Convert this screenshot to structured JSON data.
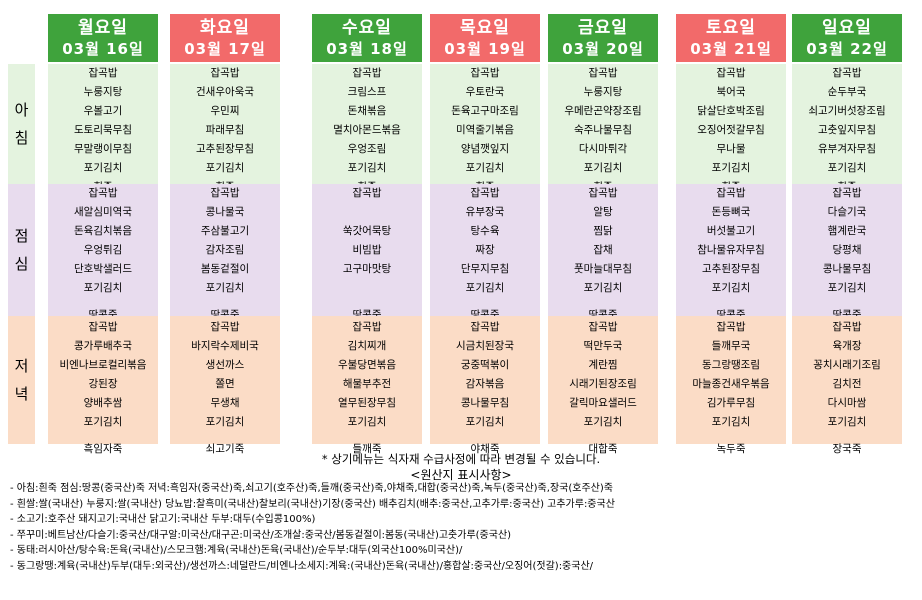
{
  "days": [
    {
      "name": "월요일",
      "date": "03월 16일",
      "color": "#3fa33c"
    },
    {
      "name": "화요일",
      "date": "03월 17일",
      "color": "#f26a6a"
    },
    {
      "name": "수요일",
      "date": "03월 18일",
      "color": "#3fa33c"
    },
    {
      "name": "목요일",
      "date": "03월 19일",
      "color": "#f26a6a"
    },
    {
      "name": "금요일",
      "date": "03월 20일",
      "color": "#3fa33c"
    },
    {
      "name": "토요일",
      "date": "03월 21일",
      "color": "#f26a6a"
    },
    {
      "name": "일요일",
      "date": "03월 22일",
      "color": "#3fa33c"
    }
  ],
  "meals": {
    "breakfast_label": [
      "아",
      "침"
    ],
    "lunch_label": [
      "점",
      "심"
    ],
    "dinner_label": [
      "저",
      "녁"
    ]
  },
  "breakfast": [
    [
      "잡곡밥",
      "누룽지탕",
      "우볼고기",
      "도토리묵무침",
      "무말랭이무침",
      "포기김치",
      "흰죽"
    ],
    [
      "잡곡밥",
      "건새우아욱국",
      "우민찌",
      "파래무침",
      "고추된장무침",
      "포기김치",
      "흰죽"
    ],
    [
      "잡곡밥",
      "크림스프",
      "돈채볶음",
      "멸치아몬드볶음",
      "우엉조림",
      "포기김치",
      "흰죽"
    ],
    [
      "잡곡밥",
      "우토란국",
      "돈육고구마조림",
      "미역줄기볶음",
      "양념깻잎지",
      "포기김치",
      "흰죽"
    ],
    [
      "잡곡밥",
      "누룽지탕",
      "우메란곤약장조림",
      "숙주나물무침",
      "다시마튀각",
      "포기김치",
      "흰죽"
    ],
    [
      "잡곡밥",
      "북어국",
      "닭살단호박조림",
      "오징어젓갈무침",
      "무나물",
      "포기김치",
      "흰죽"
    ],
    [
      "잡곡밥",
      "순두부국",
      "쇠고기버섯장조림",
      "고춧잎지무침",
      "유부겨자무침",
      "포기김치",
      "흰죽"
    ]
  ],
  "lunch": [
    [
      "잡곡밥",
      "새알심미역국",
      "돈육김치볶음",
      "우엉튀김",
      "단호박샐러드",
      "포기김치",
      "땅콩죽"
    ],
    [
      "잡곡밥",
      "콩나물국",
      "주삼불고기",
      "감자조림",
      "봄동겉절이",
      "포기김치",
      "땅콩죽"
    ],
    [
      "잡곡밥",
      "",
      "쑥갓어묵탕",
      "비빔밥",
      "고구마맛탕",
      "",
      "땅콩죽"
    ],
    [
      "잡곡밥",
      "유부장국",
      "탕수육",
      "짜장",
      "단무지무침",
      "포기김치",
      "땅콩죽"
    ],
    [
      "잡곡밥",
      "알탕",
      "찜닭",
      "잡채",
      "풋마늘대무침",
      "포기김치",
      "땅콩죽"
    ],
    [
      "잡곡밥",
      "돈등뼈국",
      "버섯불고기",
      "참나물유자무침",
      "고추된장무침",
      "포기김치",
      "땅콩죽"
    ],
    [
      "잡곡밥",
      "다슬기국",
      "햄계란국",
      "당평채",
      "콩나물무침",
      "포기김치",
      "땅콩죽"
    ]
  ],
  "dinner": [
    [
      "잡곡밥",
      "콩가루배추국",
      "비엔나브로컬리볶음",
      "강된장",
      "양배추쌈",
      "포기김치",
      "흑임자죽"
    ],
    [
      "잡곡밥",
      "바지락수제비국",
      "생선까스",
      "쫄면",
      "무생채",
      "포기김치",
      "쇠고기죽"
    ],
    [
      "잡곡밥",
      "김치찌개",
      "우불당면볶음",
      "해물부추전",
      "열무된장무침",
      "포기김치",
      "들깨죽"
    ],
    [
      "잡곡밥",
      "시금치된장국",
      "궁중떡볶이",
      "감자볶음",
      "콩나물무침",
      "포기김치",
      "야채죽"
    ],
    [
      "잡곡밥",
      "떡만두국",
      "계란찜",
      "시래기된장조림",
      "갈릭마요샐러드",
      "포기김치",
      "대합죽"
    ],
    [
      "잡곡밥",
      "들깨무국",
      "동그랑땡조림",
      "마늘종건새우볶음",
      "김가루무침",
      "포기김치",
      "녹두죽"
    ],
    [
      "잡곡밥",
      "육개장",
      "꽁치시래기조림",
      "김치전",
      "다시마쌈",
      "포기김치",
      "장국죽"
    ]
  ],
  "notice": "* 상기메뉴는 식자재 수급사정에 따라 변경될 수 있습니다.",
  "origin_title": "<원산지 표시사항>",
  "origin_notes": [
    "- 아침:흰죽  점심:땅콩(중국산)죽  저녁:흑임자(중국산)죽,쇠고기(호주산)죽,들깨(중국산)죽,야채죽,대합(중국산)죽,녹두(중국산)죽,장국(호주산)죽",
    "- 흰쌀:쌀(국내산)  누룽지:쌀(국내산)  당뇨밥:찰흑미(국내산)찰보리(국내산)기장(중국산)  배추김치(배추:중국산,고추가루:중국산)  고추가루:중국산",
    "- 소고기:호주산  돼지고기:국내산  닭고기:국내산  두부:대두(수입콩100%)",
    "- 쭈꾸미:베트남산/다슬기:중국산/대구알:미국산/대구곤:미국산/조개살:중국산/봄동겉절이:봄동(국내산)고춧가루(중국산)",
    "- 동태:러시아산/탕수육:돈육(국내산)/스모크햄:계육(국내산)돈육(국내산)/순두부:대두(외국산100%미국산)/",
    "- 동그랑땡:계육(국내산)두부(대두:외국산)/생선까스:네덜란드/비엔나소세지:계육:(국내산)돈육(국내산)/홍합살:중국산/오징어(젓갈):중국산/"
  ]
}
